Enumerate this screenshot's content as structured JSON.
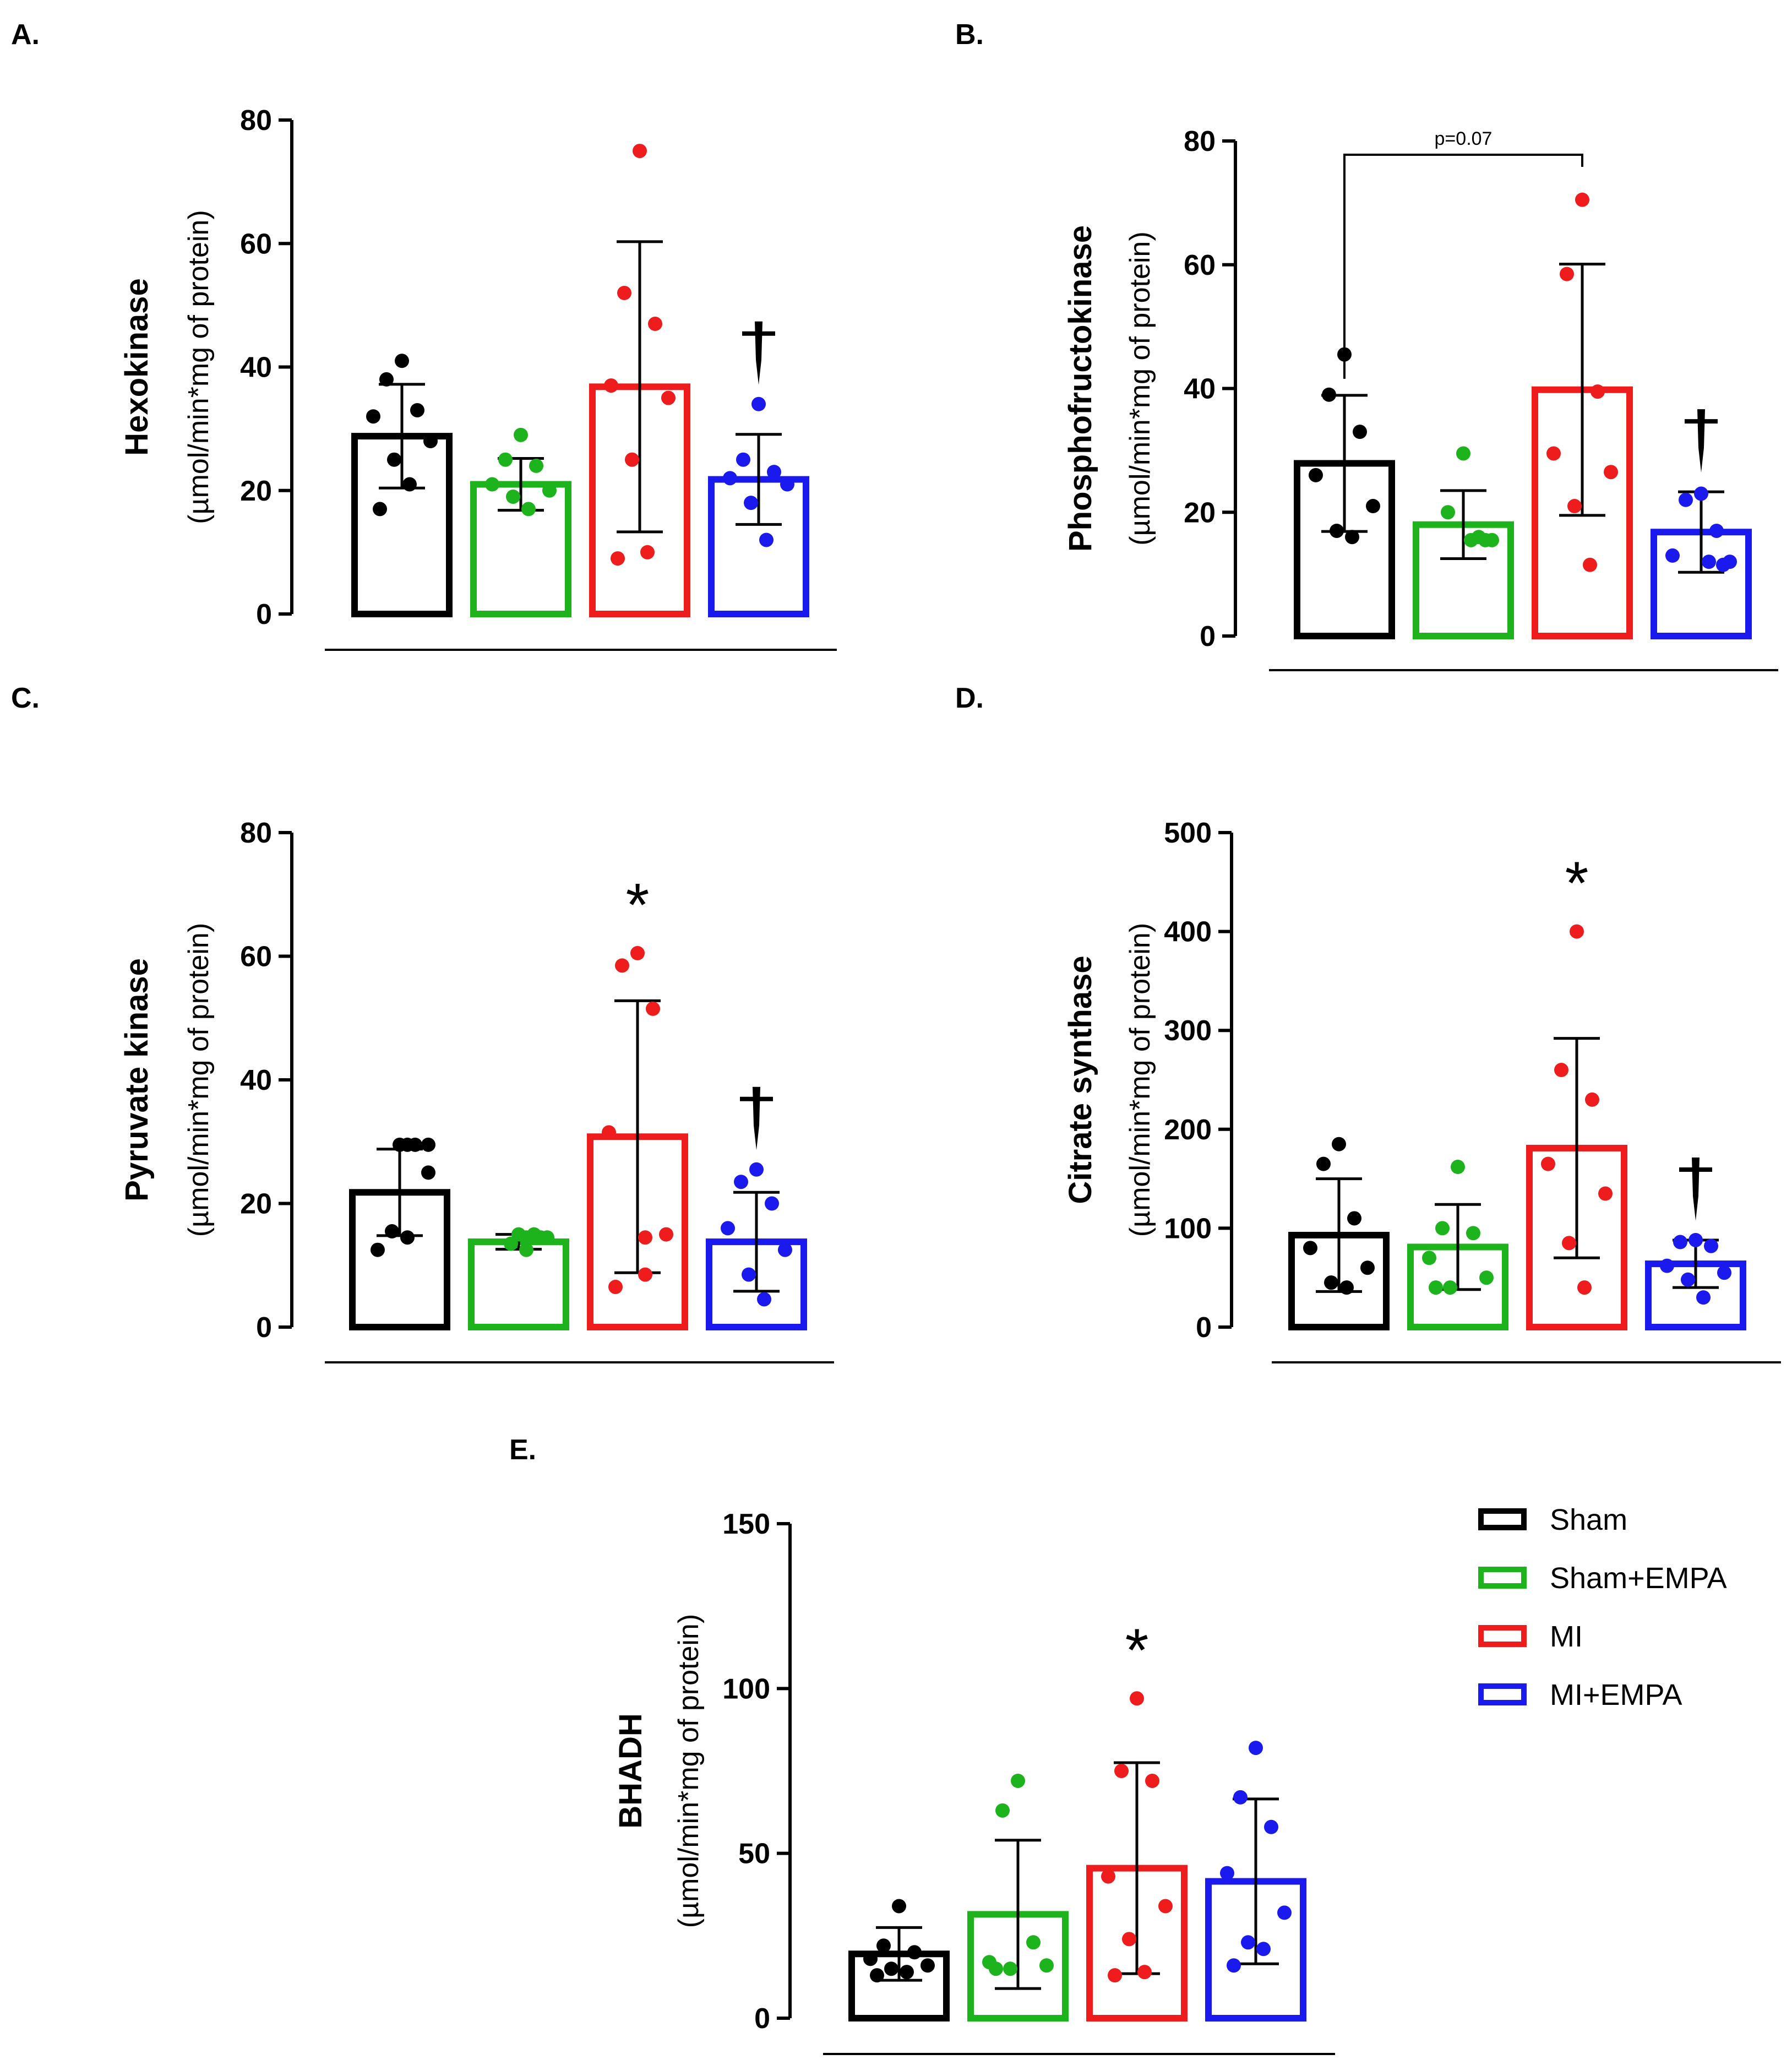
{
  "colors": {
    "Sham": "#000000",
    "Sham+EMPA": "#1db31d",
    "MI": "#ee1c1c",
    "MI+EMPA": "#1a1aee"
  },
  "legend": {
    "items": [
      "Sham",
      "Sham+EMPA",
      "MI",
      "MI+EMPA"
    ]
  },
  "chart_data": [
    {
      "panel": "A.",
      "type": "bar",
      "ylabel_title": "Hexokinase",
      "ylabel_unit": "(µmol/min*mg of protein)",
      "ylim": [
        0,
        80
      ],
      "yticks": [
        "0",
        "20",
        "40",
        "60",
        "80"
      ],
      "categories": [
        "Sham",
        "Sham+EMPA",
        "MI",
        "MI+EMPA"
      ],
      "means": [
        28.8,
        21.0,
        36.8,
        21.8
      ],
      "sd": [
        8.4,
        4.2,
        23.5,
        7.3
      ],
      "points": [
        [
          41,
          38,
          33,
          32,
          28,
          25,
          21,
          17
        ],
        [
          29,
          25,
          24,
          21,
          20,
          19,
          17
        ],
        [
          75,
          52,
          47,
          37,
          35,
          25,
          10,
          9
        ],
        [
          34,
          25,
          23,
          22,
          21,
          18,
          12
        ]
      ],
      "annotations": [
        {
          "text": "†",
          "category": "MI+EMPA"
        }
      ]
    },
    {
      "panel": "B.",
      "type": "bar",
      "ylabel_title": "Phosphofructokinase",
      "ylabel_unit": "(µmol/min*mg of protein)",
      "ylim": [
        0,
        80
      ],
      "yticks": [
        "0",
        "20",
        "40",
        "60",
        "80"
      ],
      "categories": [
        "Sham",
        "Sham+EMPA",
        "MI",
        "MI+EMPA"
      ],
      "means": [
        27.9,
        18.0,
        39.8,
        16.8
      ],
      "sd": [
        11.0,
        5.5,
        20.3,
        6.5
      ],
      "points": [
        [
          45.5,
          39,
          33,
          26,
          21,
          17,
          16
        ],
        [
          29.5,
          20,
          16,
          15.5,
          15.5,
          15.5
        ],
        [
          70.5,
          58.5,
          39.5,
          29.5,
          26.5,
          21,
          11.5
        ],
        [
          23,
          22,
          17,
          13,
          12,
          12,
          11.5
        ]
      ],
      "bracket": {
        "from": "Sham",
        "to": "MI",
        "text": "p=0.07"
      },
      "annotations": [
        {
          "text": "†",
          "category": "MI+EMPA"
        }
      ]
    },
    {
      "panel": "C.",
      "type": "bar",
      "ylabel_title": "Pyruvate kinase",
      "ylabel_unit": "(µmol/min*mg of protein)",
      "ylim": [
        0,
        80
      ],
      "yticks": [
        "0",
        "20",
        "40",
        "60",
        "80"
      ],
      "categories": [
        "Sham",
        "Sham+EMPA",
        "MI",
        "MI+EMPA"
      ],
      "means": [
        21.8,
        13.8,
        30.8,
        13.8
      ],
      "sd": [
        7.0,
        1.2,
        22.0,
        8.0
      ],
      "points": [
        [
          29.5,
          29.5,
          29.5,
          29.5,
          25,
          15.5,
          14.5,
          12.5
        ],
        [
          15,
          15,
          14.5,
          14.5,
          14.5,
          13.5,
          12.5
        ],
        [
          60.5,
          58.5,
          51.5,
          31.5,
          15,
          14.5,
          8.5,
          6.5
        ],
        [
          25.5,
          23.5,
          20,
          16,
          12.5,
          8.5,
          4.5
        ]
      ],
      "annotations": [
        {
          "text": "*",
          "category": "MI"
        },
        {
          "text": "†",
          "category": "MI+EMPA"
        }
      ]
    },
    {
      "panel": "D.",
      "type": "bar",
      "ylabel_title": "Citrate synthase",
      "ylabel_unit": "(µmol/min*mg of protein)",
      "ylim": [
        0,
        500
      ],
      "yticks": [
        "0",
        "100",
        "200",
        "300",
        "400",
        "500"
      ],
      "categories": [
        "Sham",
        "Sham+EMPA",
        "MI",
        "MI+EMPA"
      ],
      "means": [
        93,
        81,
        181,
        64
      ],
      "sd": [
        57,
        43,
        111,
        24
      ],
      "points": [
        [
          185,
          165,
          110,
          80,
          60,
          45,
          40
        ],
        [
          162,
          100,
          95,
          70,
          50,
          40,
          40
        ],
        [
          400,
          260,
          230,
          165,
          135,
          85,
          40
        ],
        [
          88,
          86,
          82,
          62,
          55,
          48,
          30
        ]
      ],
      "annotations": [
        {
          "text": "*",
          "category": "MI"
        },
        {
          "text": "†",
          "category": "MI+EMPA"
        }
      ]
    },
    {
      "panel": "E.",
      "type": "bar",
      "ylabel_title": "BHADH",
      "ylabel_unit": "(µmol/min*mg of protein)",
      "ylim": [
        0,
        150
      ],
      "yticks": [
        "0",
        "50",
        "100",
        "150"
      ],
      "categories": [
        "Sham",
        "Sham+EMPA",
        "MI",
        "MI+EMPA"
      ],
      "means": [
        19.5,
        31.5,
        45.5,
        41.5
      ],
      "sd": [
        8.0,
        22.5,
        32.0,
        25.0
      ],
      "points": [
        [
          34,
          22,
          20,
          18,
          16,
          15,
          14,
          13
        ],
        [
          72,
          63,
          23,
          17,
          16,
          15,
          15
        ],
        [
          97,
          75,
          72,
          43,
          34,
          24,
          14,
          13
        ],
        [
          82,
          67,
          58,
          44,
          32,
          23,
          21,
          16
        ]
      ],
      "annotations": [
        {
          "text": "*",
          "category": "MI"
        }
      ]
    }
  ]
}
